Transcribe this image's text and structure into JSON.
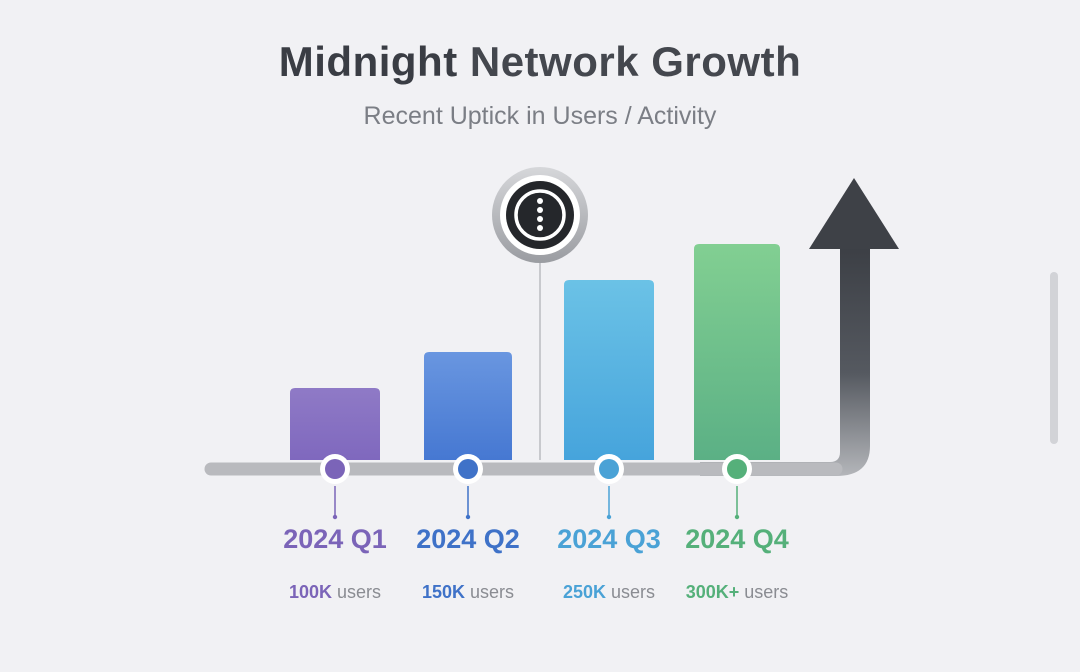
{
  "header": {
    "title_strong": "Midnight",
    "title_rest": " Network Growth",
    "subtitle": "Recent Uptick in Users / Activity"
  },
  "chart_data": {
    "type": "bar",
    "categories": [
      "2024 Q1",
      "2024 Q2",
      "2024 Q3",
      "2024 Q4"
    ],
    "values": [
      100,
      150,
      250,
      300
    ],
    "value_labels": [
      {
        "number": "100K",
        "unit": " users"
      },
      {
        "number": "150K",
        "unit": " users"
      },
      {
        "number": "250K",
        "unit": " users"
      },
      {
        "number": "300K+",
        "unit": " users"
      }
    ],
    "title": "Midnight Network Growth",
    "subtitle": "Recent Uptick in Users / Activity",
    "colors": [
      {
        "top": "#8f7ac6",
        "bottom": "#7f68be",
        "label": "#7b64b8"
      },
      {
        "top": "#6996e0",
        "bottom": "#4678d2",
        "label": "#3f72c8"
      },
      {
        "top": "#6bc2e6",
        "bottom": "#46a4dc",
        "label": "#4aa2d6"
      },
      {
        "top": "#82cf92",
        "bottom": "#5bb085",
        "label": "#55b07a"
      }
    ],
    "growth_arrow": true,
    "marker_icon": "midnight-logo-icon"
  }
}
